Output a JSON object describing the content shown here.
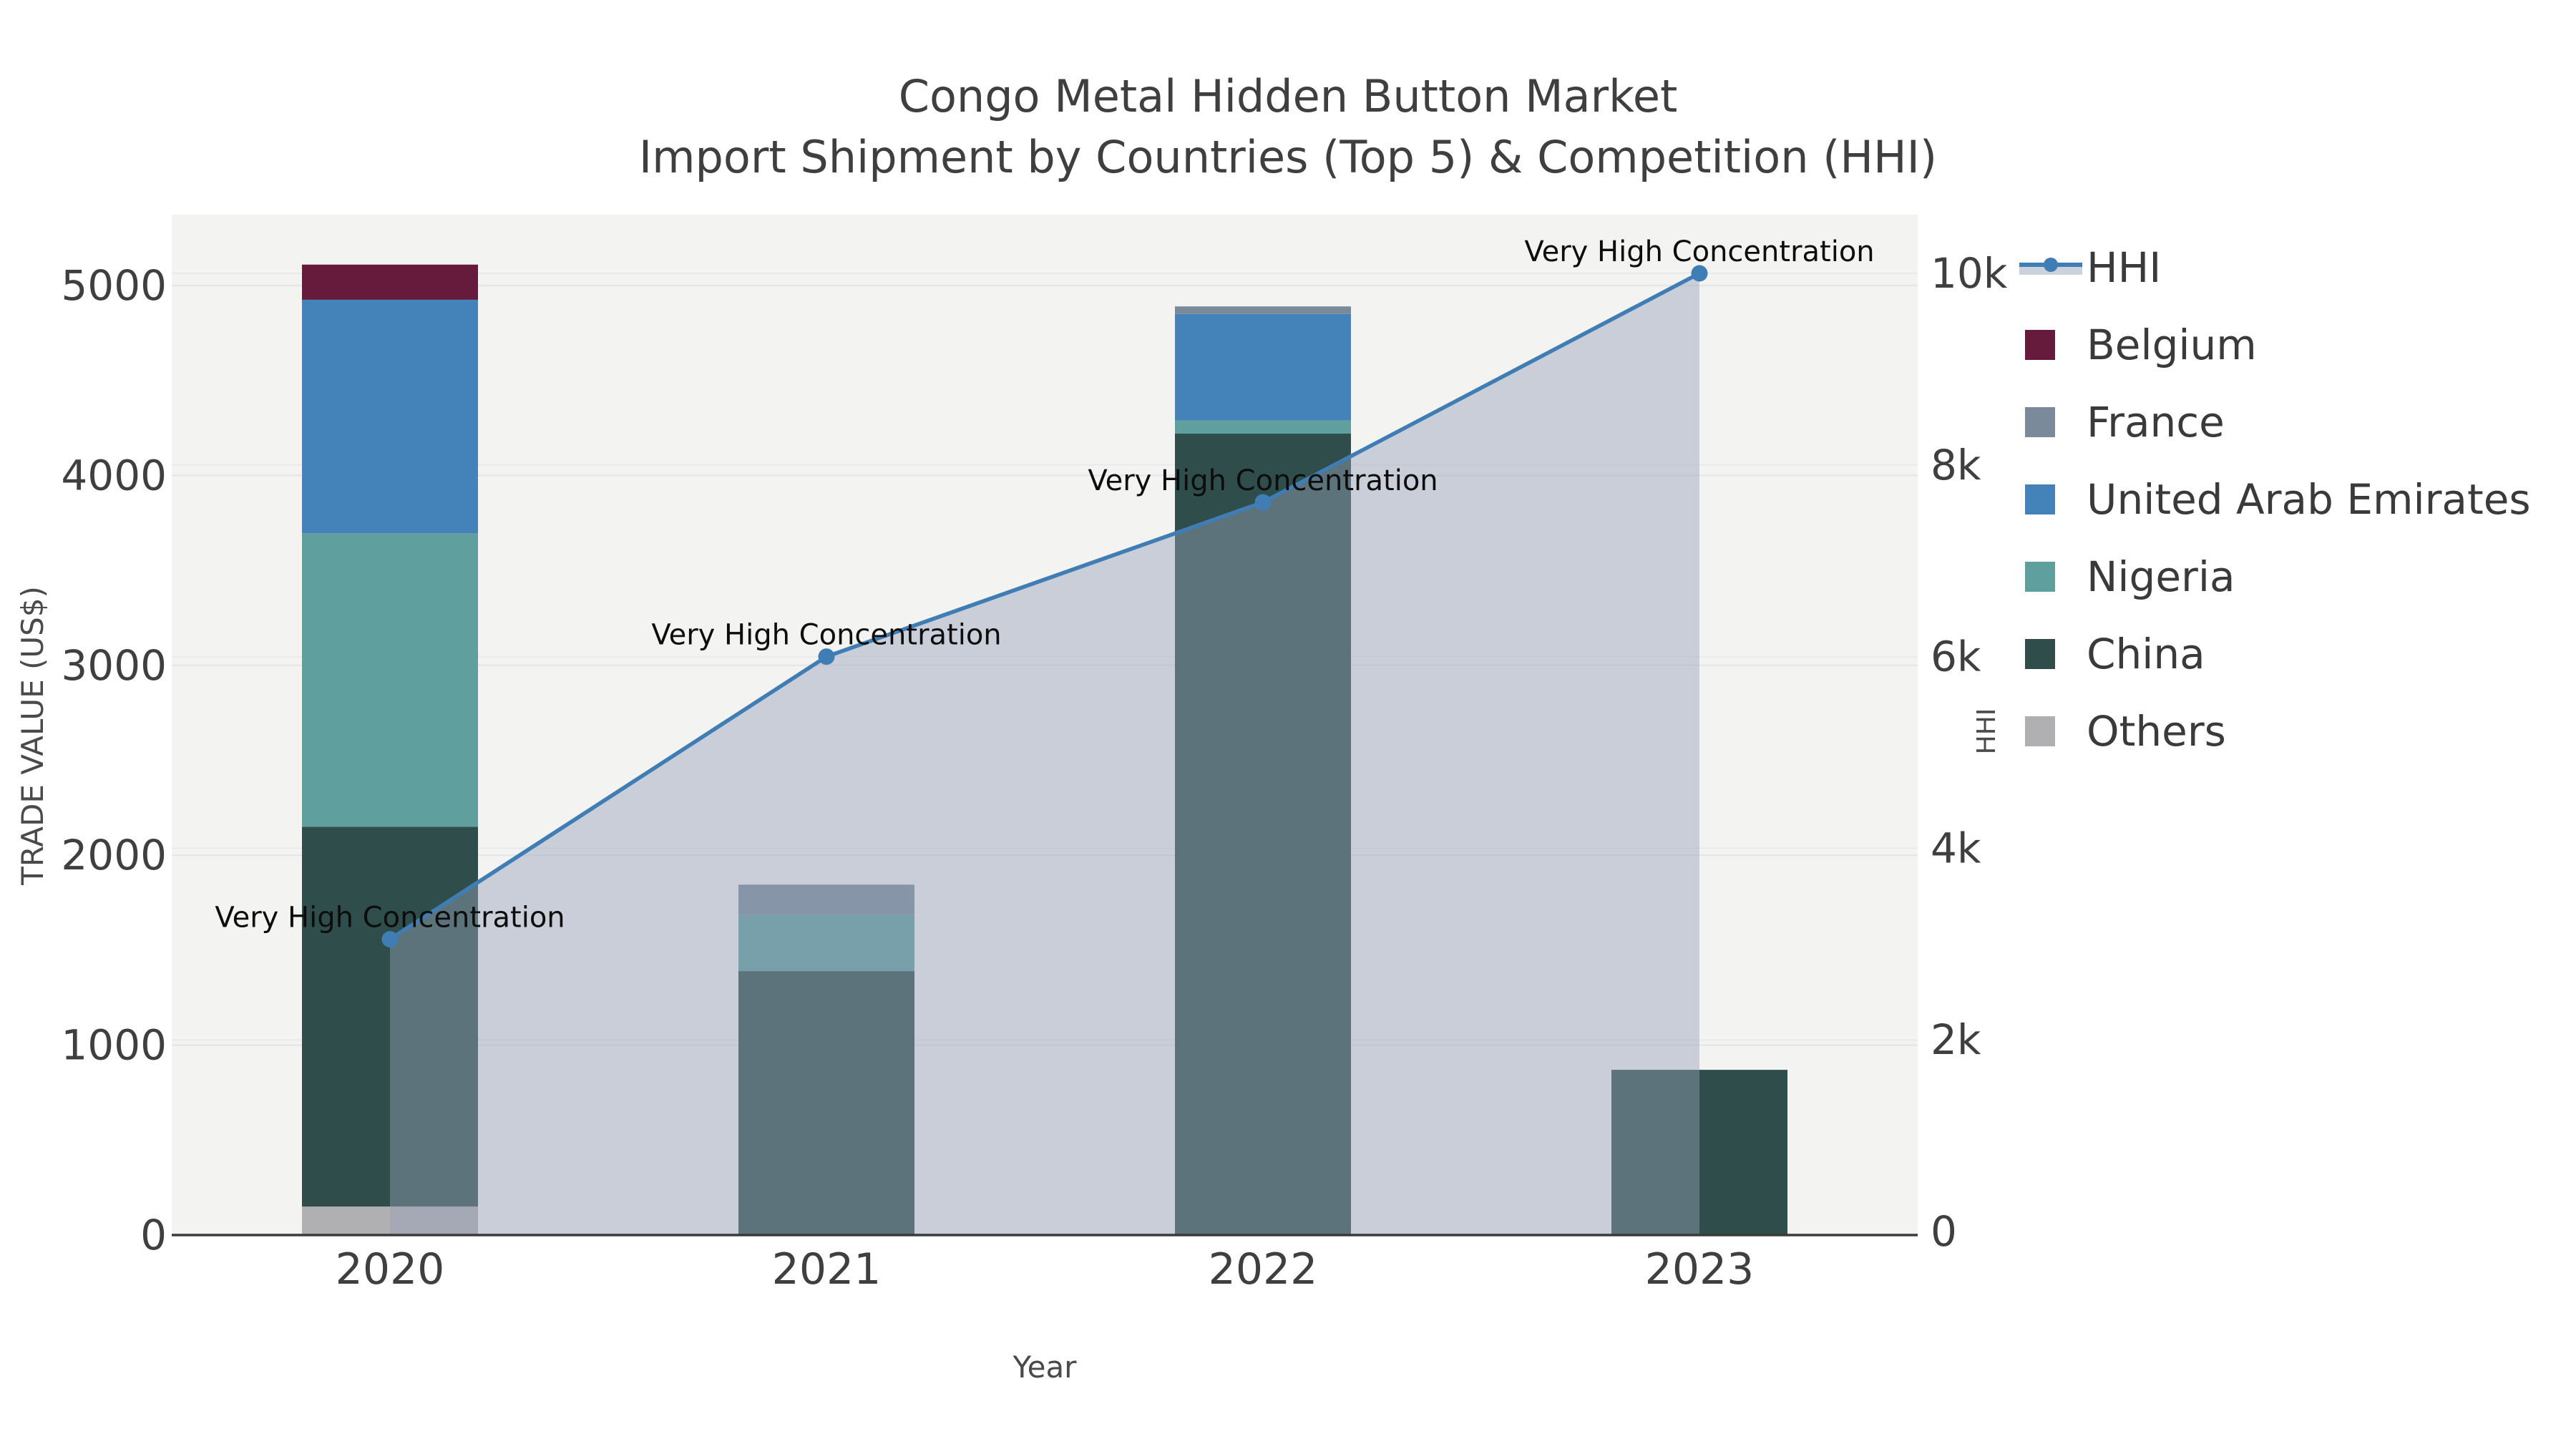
{
  "title": {
    "line1": "Congo Metal Hidden Button Market",
    "line2": "Import Shipment by Countries (Top 5) & Competition (HHI)"
  },
  "axes": {
    "x": {
      "title": "Year",
      "ticks": [
        "2020",
        "2021",
        "2022",
        "2023"
      ]
    },
    "y_left": {
      "title": "TRADE VALUE (US$)",
      "ticks": [
        0,
        1000,
        2000,
        3000,
        4000,
        5000
      ],
      "range": [
        0,
        5370
      ]
    },
    "y_right": {
      "title": "HHI",
      "ticks": [
        {
          "v": 0,
          "label": "0"
        },
        {
          "v": 2000,
          "label": "2k"
        },
        {
          "v": 4000,
          "label": "4k"
        },
        {
          "v": 6000,
          "label": "6k"
        },
        {
          "v": 8000,
          "label": "8k"
        },
        {
          "v": 10000,
          "label": "10k"
        }
      ],
      "range": [
        0,
        10620
      ]
    }
  },
  "legend": [
    {
      "id": "hhi",
      "label": "HHI",
      "type": "line"
    },
    {
      "id": "belgium",
      "label": "Belgium",
      "type": "box"
    },
    {
      "id": "france",
      "label": "France",
      "type": "box"
    },
    {
      "id": "uae",
      "label": "United Arab Emirates",
      "type": "box"
    },
    {
      "id": "nigeria",
      "label": "Nigeria",
      "type": "box"
    },
    {
      "id": "china",
      "label": "China",
      "type": "box"
    },
    {
      "id": "others",
      "label": "Others",
      "type": "box"
    }
  ],
  "colors": {
    "figure_bg": "#ffffff",
    "plot_bg": "#f3f3f2",
    "grid_left": "#e7e7e9",
    "grid_right": "#eaeaec",
    "axis_line": "#3b3b3b",
    "tick_text": "#3f3f3f",
    "axis_title_text": "#4a4a4a",
    "title_text": "#3f3f3f",
    "annotation_text": "#0d0d0d",
    "legend_text": "#3a3a3a",
    "hhi_line": "#3f7db4",
    "hhi_area": "rgba(150,162,185,0.45)",
    "hhi_area_legend": "#ccd2db"
  },
  "chart_data": {
    "type": [
      "bar",
      "line"
    ],
    "categories": [
      "2020",
      "2021",
      "2022",
      "2023"
    ],
    "stack_order": [
      "others",
      "china",
      "nigeria",
      "uae",
      "france",
      "belgium"
    ],
    "series": [
      {
        "id": "belgium",
        "name": "Belgium",
        "color": "#661a3c",
        "values": [
          185,
          0,
          0,
          0
        ]
      },
      {
        "id": "france",
        "name": "France",
        "color": "#7b8a9b",
        "values": [
          0,
          160,
          40,
          0
        ]
      },
      {
        "id": "uae",
        "name": "United Arab Emirates",
        "color": "#4483ba",
        "values": [
          1230,
          0,
          560,
          0
        ]
      },
      {
        "id": "nigeria",
        "name": "Nigeria",
        "color": "#5f9f9e",
        "values": [
          1545,
          295,
          70,
          0
        ]
      },
      {
        "id": "china",
        "name": "China",
        "color": "#2f4e4b",
        "values": [
          2000,
          1390,
          4220,
          870
        ]
      },
      {
        "id": "others",
        "name": "Others",
        "color": "#b0b0b2",
        "values": [
          150,
          0,
          0,
          0
        ]
      }
    ],
    "bar_totals": [
      5110,
      1845,
      4890,
      870
    ],
    "line_series": {
      "id": "hhi",
      "name": "HHI",
      "axis": "y_right",
      "color": "#3f7db4",
      "area": true,
      "values": [
        3050,
        6000,
        7610,
        10000
      ],
      "annotations": [
        "Very High Concentration",
        "Very High Concentration",
        "Very High Concentration",
        "Very High Concentration"
      ]
    },
    "xlabel": "Year",
    "ylabel_left": "TRADE VALUE (US$)",
    "ylabel_right": "HHI",
    "legend_position": "right",
    "grid": true
  }
}
